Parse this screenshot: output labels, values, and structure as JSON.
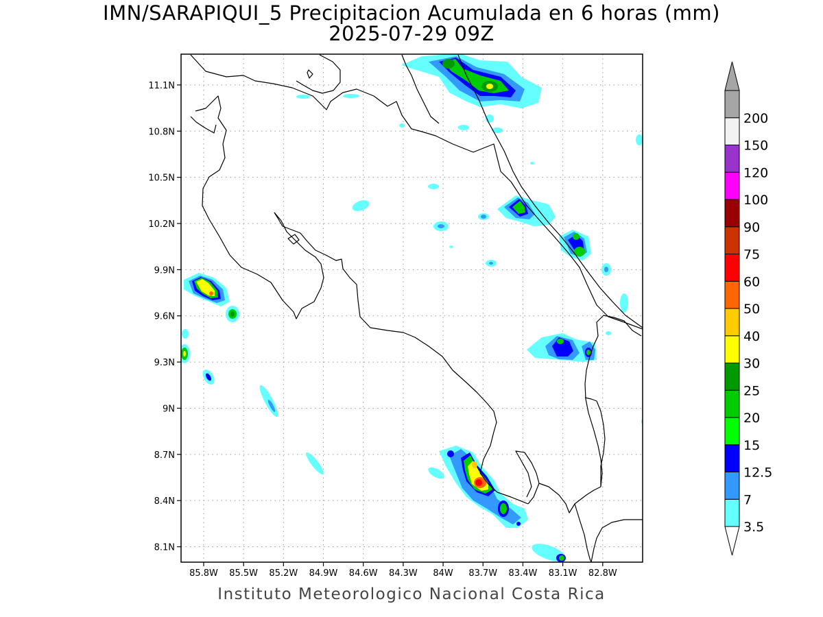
{
  "title": {
    "line1": "IMN/SARAPIQUI_5 Precipitacion Acumulada en 6 horas (mm)",
    "line2": "2025-07-29 09Z"
  },
  "footer": "Instituto Meteorologico Nacional Costa Rica",
  "map": {
    "lon_range": [
      -85.97,
      -82.5
    ],
    "lat_range": [
      8.0,
      11.3
    ],
    "lon_ticks": [
      {
        "value": -85.8,
        "label": "85.8W"
      },
      {
        "value": -85.5,
        "label": "85.5W"
      },
      {
        "value": -85.2,
        "label": "85.2W"
      },
      {
        "value": -84.9,
        "label": "84.9W"
      },
      {
        "value": -84.6,
        "label": "84.6W"
      },
      {
        "value": -84.3,
        "label": "84.3W"
      },
      {
        "value": -84.0,
        "label": "84W"
      },
      {
        "value": -83.7,
        "label": "83.7W"
      },
      {
        "value": -83.4,
        "label": "83.4W"
      },
      {
        "value": -83.1,
        "label": "83.1W"
      },
      {
        "value": -82.8,
        "label": "82.8W"
      }
    ],
    "lat_ticks": [
      {
        "value": 8.1,
        "label": "8.1N"
      },
      {
        "value": 8.4,
        "label": "8.4N"
      },
      {
        "value": 8.7,
        "label": "8.7N"
      },
      {
        "value": 9.0,
        "label": "9N"
      },
      {
        "value": 9.3,
        "label": "9.3N"
      },
      {
        "value": 9.6,
        "label": "9.6N"
      },
      {
        "value": 9.9,
        "label": "9.9N"
      },
      {
        "value": 10.2,
        "label": "10.2N"
      },
      {
        "value": 10.5,
        "label": "10.5N"
      },
      {
        "value": 10.8,
        "label": "10.8N"
      },
      {
        "value": 11.1,
        "label": "11.1N"
      }
    ],
    "grid": true
  },
  "colorbar": {
    "levels": [
      {
        "label": "3.5",
        "color": "#66ffff"
      },
      {
        "label": "7",
        "color": "#3399ff"
      },
      {
        "label": "12.5",
        "color": "#0000ff"
      },
      {
        "label": "15",
        "color": "#00ff00"
      },
      {
        "label": "20",
        "color": "#00cc00"
      },
      {
        "label": "25",
        "color": "#009900"
      },
      {
        "label": "30",
        "color": "#ffff00"
      },
      {
        "label": "40",
        "color": "#ffcc00"
      },
      {
        "label": "50",
        "color": "#ff6600"
      },
      {
        "label": "60",
        "color": "#ff0000"
      },
      {
        "label": "75",
        "color": "#cc3300"
      },
      {
        "label": "90",
        "color": "#990000"
      },
      {
        "label": "100",
        "color": "#ff00ff"
      },
      {
        "label": "120",
        "color": "#9933cc"
      },
      {
        "label": "150",
        "color": "#f2f2f2"
      },
      {
        "label": "200",
        "color": "#a6a6a6"
      }
    ]
  }
}
